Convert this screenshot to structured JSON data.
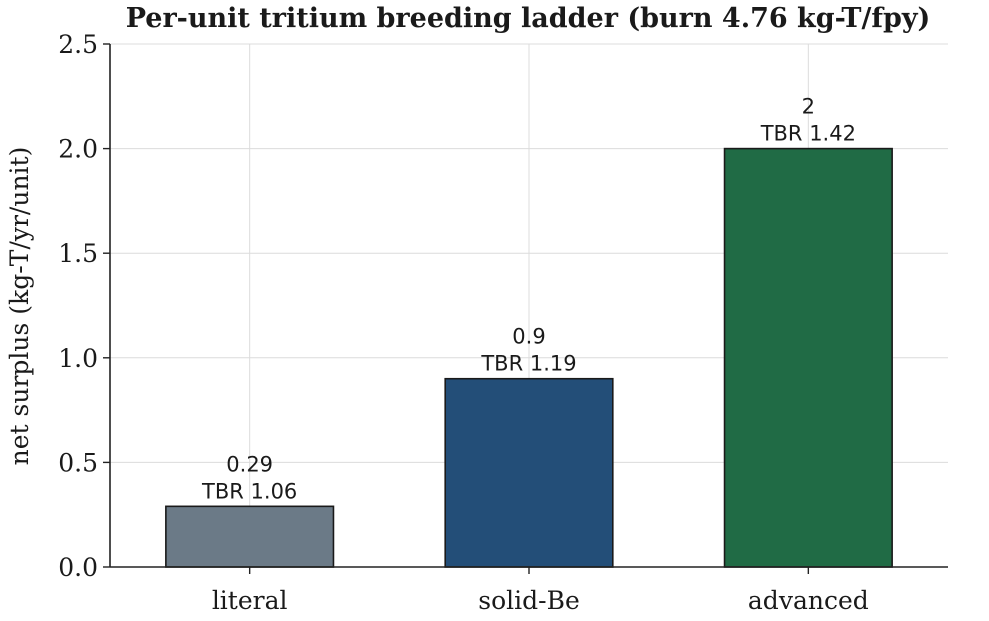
{
  "chart_data": {
    "type": "bar",
    "title": "Per-unit tritium breeding ladder (burn 4.76 kg-T/fpy)",
    "xlabel": "",
    "ylabel": "net surplus (kg-T/yr/unit)",
    "categories": [
      "literal",
      "solid-Be",
      "advanced"
    ],
    "values": [
      0.29,
      0.9,
      2.0
    ],
    "value_labels": [
      "0.29",
      "0.9",
      "2"
    ],
    "tbr_labels": [
      "TBR 1.06",
      "TBR 1.19",
      "TBR 1.42"
    ],
    "colors": [
      "#6b7a87",
      "#234e78",
      "#206b45"
    ],
    "ylim": [
      0,
      2.5
    ],
    "yticks": [
      0.0,
      0.5,
      1.0,
      1.5,
      2.0,
      2.5
    ],
    "ytick_labels": [
      "0.0",
      "0.5",
      "1.0",
      "1.5",
      "2.0",
      "2.5"
    ],
    "grid": true,
    "legend": "none"
  }
}
